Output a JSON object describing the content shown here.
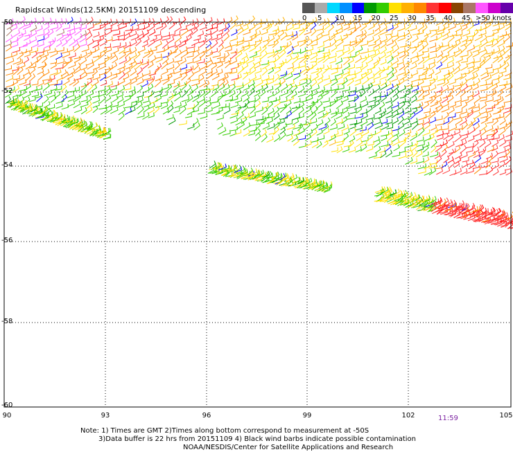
{
  "title": "Rapidscat Winds(12.5KM) 20151109 descending",
  "scale": {
    "colors": [
      "#555555",
      "#aaaaaa",
      "#00d8ff",
      "#0090ff",
      "#0000ff",
      "#009900",
      "#33cc00",
      "#ffe000",
      "#ffb000",
      "#ff8800",
      "#ff3333",
      "#ff0000",
      "#884400",
      "#aa7766",
      "#ff55ff",
      "#cc00cc",
      "#6600aa"
    ],
    "labels": [
      "0",
      "5",
      "10",
      "15",
      "20",
      "25",
      "30",
      "35",
      "40",
      "45",
      ">50 knots"
    ]
  },
  "axes": {
    "y_labels": [
      "-50",
      "-52",
      "-54",
      "-56",
      "-58",
      "-60"
    ],
    "x_labels": [
      "90",
      "93",
      "96",
      "99",
      "102",
      "105"
    ]
  },
  "pass_time": "11:59",
  "notes": [
    "Note: 1) Times are GMT 2)Times along bottom correspond to measurement at -50S",
    "3)Data buffer is 22 hrs from 20151109 4) Black wind barbs indicate possible contamination",
    "NOAA/NESDIS/Center for Satellite Applications and Research"
  ]
}
